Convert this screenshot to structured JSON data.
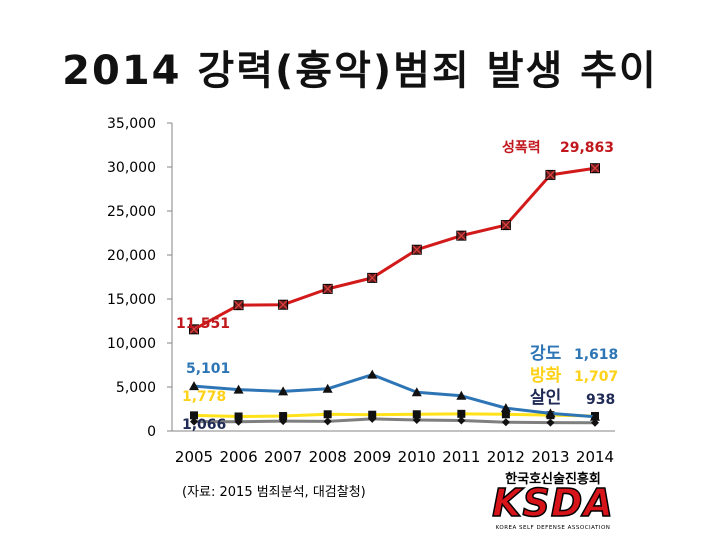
{
  "title": "2014 강력(흉악)범죄 발생 추이",
  "source_note": "(자료: 2015 범죄분석, 대검찰청)",
  "logo": {
    "org_name": "한국호신술진흥회",
    "mark": "KSDA",
    "subtitle": "KOREA SELF DEFENSE ASSOCIATION"
  },
  "chart_data": {
    "type": "line",
    "title": "2014 강력(흉악)범죄 발생 추이",
    "xlabel": "",
    "ylabel": "",
    "categories": [
      "2005",
      "2006",
      "2007",
      "2008",
      "2009",
      "2010",
      "2011",
      "2012",
      "2013",
      "2014"
    ],
    "ylim": [
      0,
      35000
    ],
    "yticks": [
      0,
      5000,
      10000,
      15000,
      20000,
      25000,
      30000,
      35000
    ],
    "ytick_labels": [
      "0",
      "5,000",
      "10,000",
      "15,000",
      "20,000",
      "25,000",
      "30,000",
      "35,000"
    ],
    "grid": false,
    "legend": "none (series names labeled at right end)",
    "series": [
      {
        "name": "성폭력",
        "color": "#d21a1a",
        "marker": "square-x",
        "values": [
          11551,
          14300,
          14350,
          16150,
          17400,
          20600,
          22200,
          23400,
          29100,
          29863
        ],
        "start_label": "11,551",
        "end_label": "29,863",
        "label_color": "#c0181c"
      },
      {
        "name": "강도",
        "color": "#2e75b6",
        "marker": "triangle",
        "values": [
          5101,
          4700,
          4500,
          4800,
          6400,
          4400,
          4000,
          2600,
          2000,
          1618
        ],
        "start_label": "5,101",
        "end_label": "1,618",
        "label_color": "#2e75b6"
      },
      {
        "name": "방화",
        "color": "#ffe21a",
        "marker": "square",
        "values": [
          1778,
          1650,
          1700,
          1900,
          1850,
          1900,
          1950,
          1900,
          1800,
          1707
        ],
        "start_label": "1,778",
        "end_label": "1,707",
        "label_color": "#ffd21a"
      },
      {
        "name": "살인",
        "color": "#7f7f7f",
        "marker": "diamond",
        "values": [
          1066,
          1050,
          1120,
          1100,
          1380,
          1250,
          1200,
          1000,
          950,
          938
        ],
        "start_label": "1,066",
        "end_label": "938",
        "label_color": "#1f2a55"
      }
    ]
  }
}
